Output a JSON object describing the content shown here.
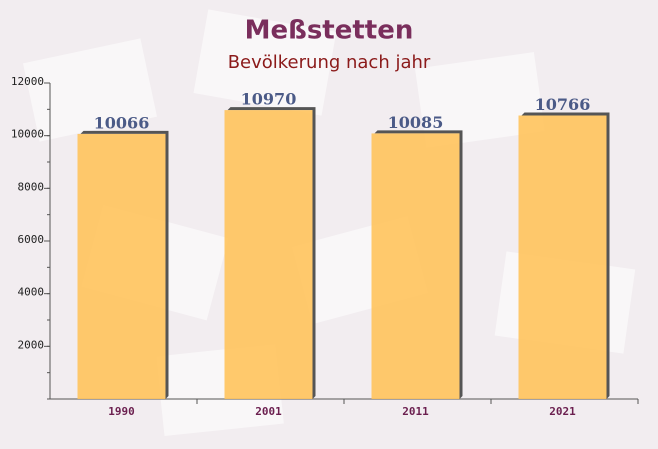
{
  "chart_data": {
    "type": "bar",
    "title": "Meßstetten",
    "subtitle": "Bevölkerung nach jahr",
    "categories": [
      "1990",
      "2001",
      "2011",
      "2021"
    ],
    "values": [
      10066,
      10970,
      10085,
      10766
    ],
    "color": "#ffc35c",
    "ylim": [
      0,
      12000
    ],
    "yticks": [
      2000,
      4000,
      6000,
      8000,
      10000,
      12000
    ],
    "grid": false
  }
}
